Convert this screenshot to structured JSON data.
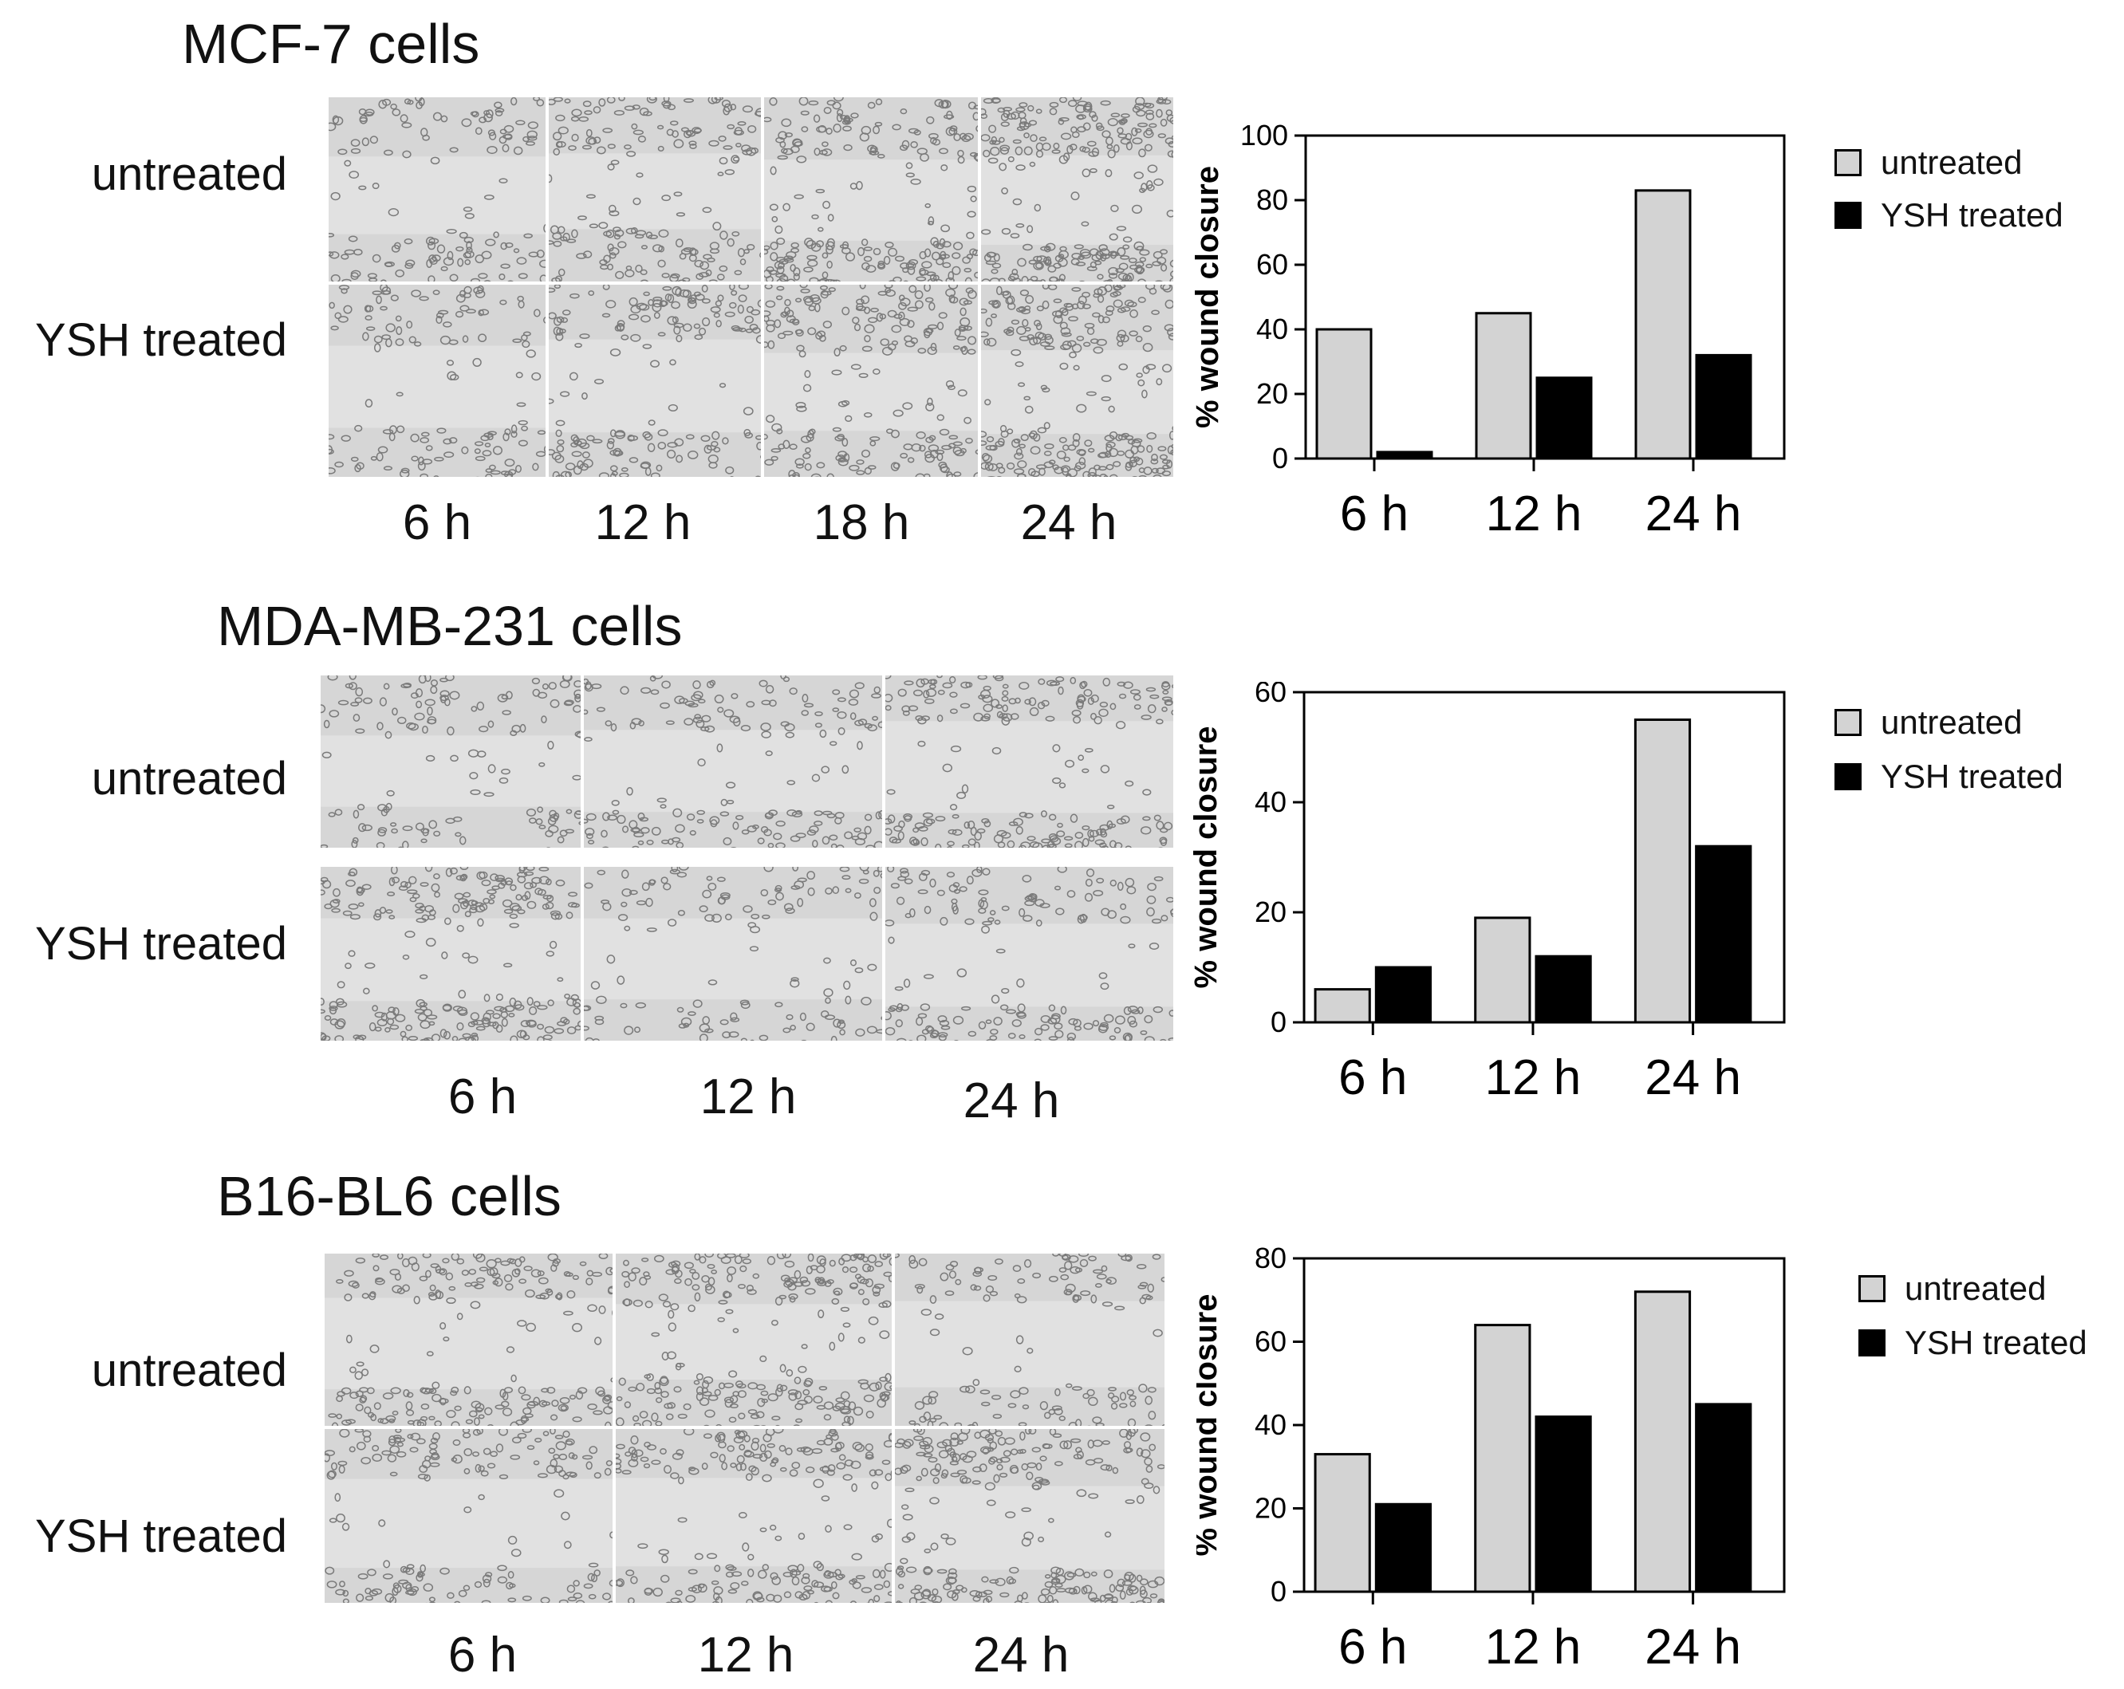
{
  "panels": [
    {
      "title": "MCF-7 cells",
      "row_labels": [
        "untreated",
        "YSH treated"
      ],
      "image_time_labels": [
        "6 h",
        "12 h",
        "18 h",
        "24 h"
      ],
      "legend": [
        "untreated",
        "YSH treated"
      ],
      "chart_data": {
        "type": "bar",
        "title": "",
        "categories": [
          "6 h",
          "12 h",
          "24 h"
        ],
        "series": [
          {
            "name": "untreated",
            "values": [
              40,
              45,
              83
            ],
            "color": "#d3d3d3"
          },
          {
            "name": "YSH treated",
            "values": [
              2,
              25,
              32
            ],
            "color": "#000000"
          }
        ],
        "xlabel": "",
        "ylabel": "% wound closure",
        "ylim": [
          0,
          100
        ],
        "yticks": [
          0,
          20,
          40,
          60,
          80,
          100
        ],
        "grid": false,
        "legend_position": "right"
      }
    },
    {
      "title": "MDA-MB-231 cells",
      "row_labels": [
        "untreated",
        "YSH treated"
      ],
      "image_time_labels": [
        "6 h",
        "12 h",
        "24 h"
      ],
      "legend": [
        "untreated",
        "YSH treated"
      ],
      "chart_data": {
        "type": "bar",
        "title": "",
        "categories": [
          "6 h",
          "12 h",
          "24 h"
        ],
        "series": [
          {
            "name": "untreated",
            "values": [
              6,
              19,
              55
            ],
            "color": "#d3d3d3"
          },
          {
            "name": "YSH treated",
            "values": [
              10,
              12,
              32
            ],
            "color": "#000000"
          }
        ],
        "xlabel": "",
        "ylabel": "% wound closure",
        "ylim": [
          0,
          60
        ],
        "yticks": [
          0,
          20,
          40,
          60
        ],
        "grid": false,
        "legend_position": "right"
      }
    },
    {
      "title": "B16-BL6 cells",
      "row_labels": [
        "untreated",
        "YSH treated"
      ],
      "image_time_labels": [
        "6 h",
        "12 h",
        "24 h"
      ],
      "legend": [
        "untreated",
        "YSH treated"
      ],
      "chart_data": {
        "type": "bar",
        "title": "",
        "categories": [
          "6 h",
          "12 h",
          "24 h"
        ],
        "series": [
          {
            "name": "untreated",
            "values": [
              33,
              64,
              72
            ],
            "color": "#d3d3d3"
          },
          {
            "name": "YSH treated",
            "values": [
              21,
              42,
              45
            ],
            "color": "#000000"
          }
        ],
        "xlabel": "",
        "ylabel": "% wound closure",
        "ylim": [
          0,
          80
        ],
        "yticks": [
          0,
          20,
          40,
          60,
          80
        ],
        "grid": false,
        "legend_position": "right"
      }
    }
  ]
}
